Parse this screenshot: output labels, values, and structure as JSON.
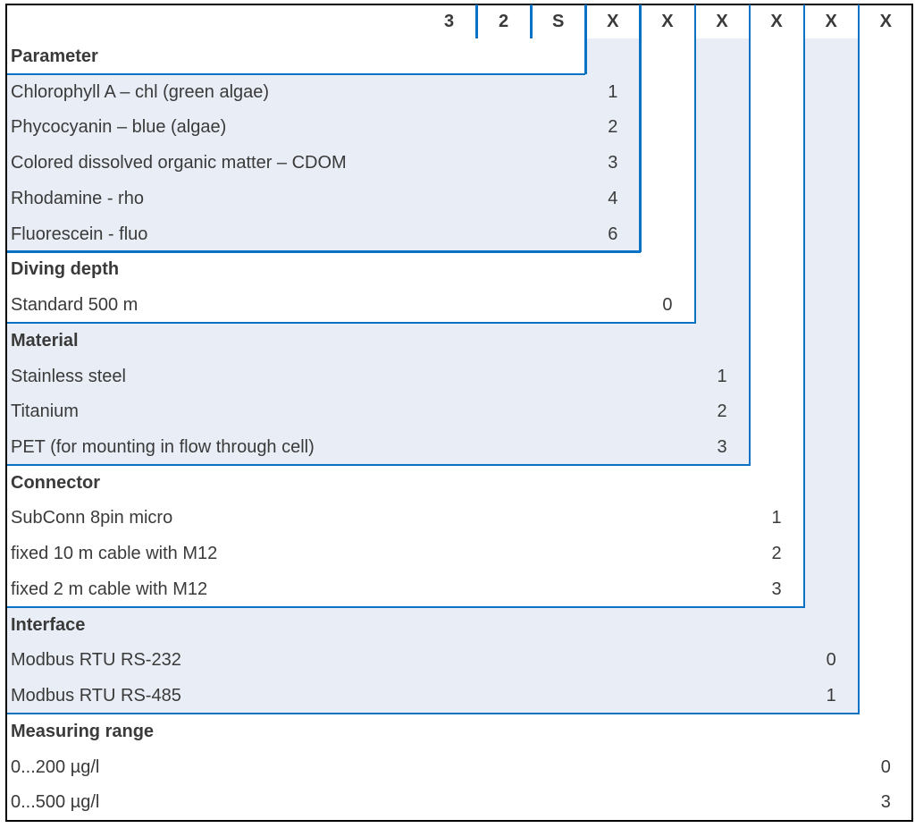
{
  "header_codes": [
    "3",
    "2",
    "S",
    "X",
    "X",
    "X",
    "X",
    "X",
    "X"
  ],
  "colors": {
    "accent_blue": "#0a72c4",
    "shade": "#e9eef6",
    "text": "#3a3a3a",
    "border": "#000000"
  },
  "groups": [
    {
      "title": "Parameter",
      "shaded": true,
      "options": [
        {
          "label": "Chlorophyll A – chl (green algae)",
          "code": "1"
        },
        {
          "label": "Phycocyanin – blue (algae)",
          "code": "2"
        },
        {
          "label": "Colored dissolved organic matter – CDOM",
          "code": "3"
        },
        {
          "label": "Rhodamine - rho",
          "code": "4"
        },
        {
          "label": "Fluorescein - fluo",
          "code": "6"
        }
      ]
    },
    {
      "title": "Diving depth",
      "shaded": false,
      "options": [
        {
          "label": "Standard 500 m",
          "code": "0"
        }
      ]
    },
    {
      "title": "Material",
      "shaded": true,
      "options": [
        {
          "label": "Stainless steel",
          "code": "1"
        },
        {
          "label": "Titanium",
          "code": "2"
        },
        {
          "label": "PET (for mounting in flow through cell)",
          "code": "3"
        }
      ]
    },
    {
      "title": "Connector",
      "shaded": false,
      "options": [
        {
          "label": "SubConn 8pin micro",
          "code": "1"
        },
        {
          "label": "fixed 10 m cable with M12",
          "code": "2"
        },
        {
          "label": "fixed 2 m cable with M12",
          "code": "3"
        }
      ]
    },
    {
      "title": "Interface",
      "shaded": true,
      "options": [
        {
          "label": "Modbus RTU RS-232",
          "code": "0"
        },
        {
          "label": "Modbus RTU RS-485",
          "code": "1"
        }
      ]
    },
    {
      "title": "Measuring range",
      "shaded": false,
      "options": [
        {
          "label": "0...200 µg/l",
          "code": "0"
        },
        {
          "label": "0...500 µg/l",
          "code": "3"
        }
      ]
    }
  ]
}
